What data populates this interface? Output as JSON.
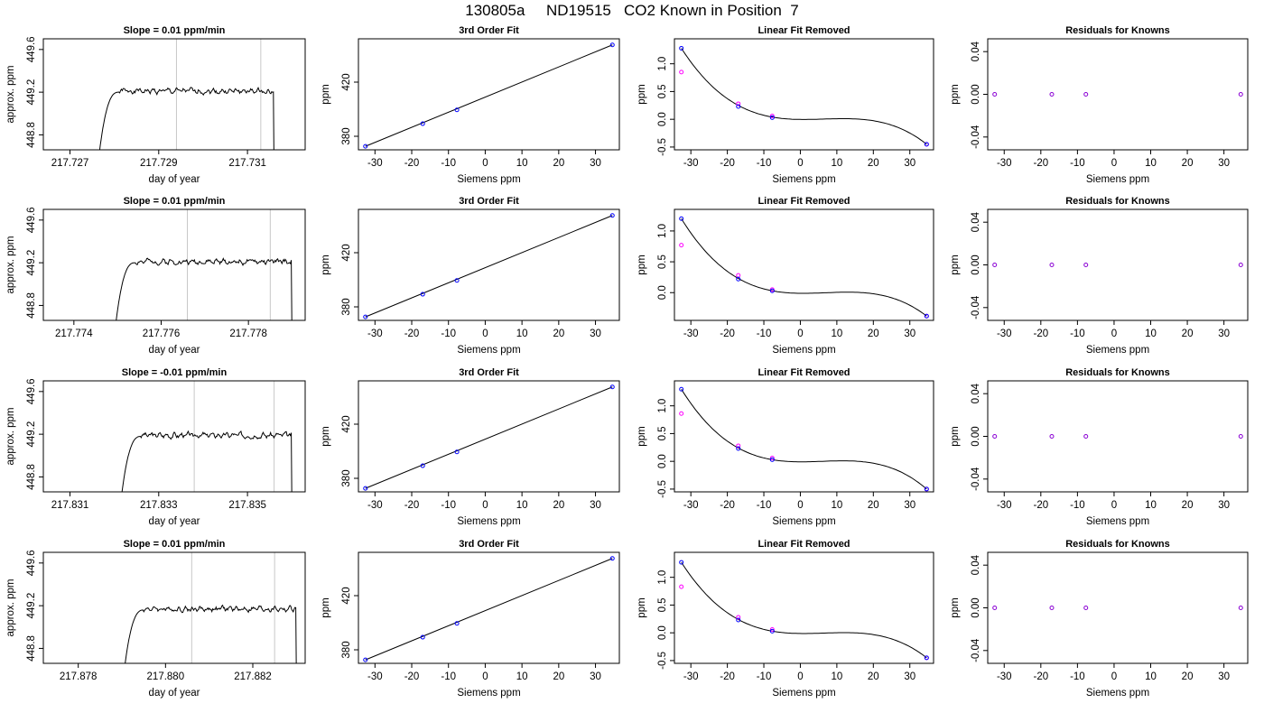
{
  "page": {
    "title": "130805a     ND19515   CO2 Known in Position  7"
  },
  "colors": {
    "siemens_points": "#0000ff",
    "fit_points": "#ff00ff",
    "residual_points": "#8a00d4",
    "window_markers": "#c8c8c8",
    "line": "#000000"
  },
  "chart_data": [
    {
      "type": "line",
      "title": "Slope =  0.01  ppm/min",
      "xlabel": "day of year",
      "ylabel": "approx. ppm",
      "xticks": [
        "217.727",
        "217.729",
        "217.731"
      ],
      "xtick_values": [
        217.727,
        217.729,
        217.731
      ],
      "yticks": [
        "448.8",
        "449.2",
        "449.6"
      ],
      "ytick_values": [
        448.8,
        449.2,
        449.6
      ],
      "xlim": [
        217.7264,
        217.7323
      ],
      "ylim": [
        448.66,
        449.7
      ],
      "markers": [
        217.7294,
        217.7313
      ],
      "trace": {
        "start": 217.7276,
        "rise_end": 217.7281,
        "end": 217.7316,
        "plateau": 449.22,
        "seed": 1
      }
    },
    {
      "type": "line",
      "title": "3rd Order Fit",
      "xlabel": "Siemens ppm",
      "ylabel": "ppm",
      "xticks": [
        "-30",
        "-20",
        "-10",
        "0",
        "10",
        "20",
        "30"
      ],
      "xtick_values": [
        -30,
        -20,
        -10,
        0,
        10,
        20,
        30
      ],
      "yticks": [
        "380",
        "420"
      ],
      "ytick_values": [
        380,
        420
      ],
      "xlim": [
        -34.5,
        36.5
      ],
      "ylim": [
        370,
        452
      ],
      "fit_line": [
        [
          -32.6,
          372.6
        ],
        [
          34.6,
          447.5
        ]
      ],
      "points": [
        [
          -32.6,
          372.6
        ],
        [
          -17,
          389.3
        ],
        [
          -7.7,
          399.5
        ],
        [
          34.6,
          447.5
        ]
      ]
    },
    {
      "type": "line",
      "title": "Linear Fit Removed",
      "xlabel": "Siemens ppm",
      "ylabel": "ppm",
      "xticks": [
        "-30",
        "-20",
        "-10",
        "0",
        "10",
        "20",
        "30"
      ],
      "xtick_values": [
        -30,
        -20,
        -10,
        0,
        10,
        20,
        30
      ],
      "yticks": [
        "-0.5",
        "0.0",
        "0.5",
        "1.0"
      ],
      "ytick_values": [
        -0.5,
        0.0,
        0.5,
        1.0
      ],
      "xlim": [
        -34.5,
        36.5
      ],
      "ylim": [
        -0.55,
        1.45
      ],
      "cubic_points": [
        [
          -32.6,
          1.28
        ],
        [
          -17,
          0.25
        ],
        [
          -7.7,
          0.04
        ],
        [
          34.6,
          -0.45
        ]
      ],
      "siemens_points": [
        [
          -32.6,
          1.28
        ],
        [
          -17,
          0.23
        ],
        [
          -7.7,
          0.03
        ],
        [
          34.6,
          -0.45
        ]
      ],
      "fit_points": [
        [
          -32.6,
          0.85
        ],
        [
          -17,
          0.28
        ],
        [
          -7.7,
          0.06
        ],
        [
          34.6,
          -0.45
        ]
      ]
    },
    {
      "type": "scatter",
      "title": "Residuals for Knowns",
      "xlabel": "Siemens ppm",
      "ylabel": "ppm",
      "xticks": [
        "-30",
        "-20",
        "-10",
        "0",
        "10",
        "20",
        "30"
      ],
      "xtick_values": [
        -30,
        -20,
        -10,
        0,
        10,
        20,
        30
      ],
      "yticks": [
        "-0.04",
        "0.00",
        "0.04"
      ],
      "ytick_values": [
        -0.04,
        0.0,
        0.04
      ],
      "xlim": [
        -34.5,
        36.5
      ],
      "ylim": [
        -0.052,
        0.052
      ],
      "points": [
        [
          -32.6,
          0.0
        ],
        [
          -17,
          0.0
        ],
        [
          -7.7,
          0.0
        ],
        [
          34.6,
          0.0
        ]
      ]
    },
    {
      "type": "line",
      "title": "Slope =  0.01  ppm/min",
      "xlabel": "day of year",
      "ylabel": "approx. ppm",
      "xticks": [
        "217.774",
        "217.776",
        "217.778"
      ],
      "xtick_values": [
        217.774,
        217.776,
        217.778
      ],
      "yticks": [
        "448.8",
        "449.2",
        "449.6"
      ],
      "ytick_values": [
        448.8,
        449.2,
        449.6
      ],
      "xlim": [
        217.7733,
        217.7793
      ],
      "ylim": [
        448.66,
        449.7
      ],
      "markers": [
        217.7766,
        217.7785
      ],
      "trace": {
        "start": 217.7749,
        "rise_end": 217.7754,
        "end": 217.779,
        "plateau": 449.22,
        "seed": 2
      }
    },
    {
      "type": "line",
      "title": "3rd Order Fit",
      "xlabel": "Siemens ppm",
      "ylabel": "ppm",
      "xticks": [
        "-30",
        "-20",
        "-10",
        "0",
        "10",
        "20",
        "30"
      ],
      "xtick_values": [
        -30,
        -20,
        -10,
        0,
        10,
        20,
        30
      ],
      "yticks": [
        "380",
        "420"
      ],
      "ytick_values": [
        380,
        420
      ],
      "xlim": [
        -34.5,
        36.5
      ],
      "ylim": [
        370,
        452
      ],
      "fit_line": [
        [
          -32.6,
          372.6
        ],
        [
          34.6,
          447.5
        ]
      ],
      "points": [
        [
          -32.6,
          372.6
        ],
        [
          -17,
          389.3
        ],
        [
          -7.7,
          399.5
        ],
        [
          34.6,
          447.5
        ]
      ]
    },
    {
      "type": "line",
      "title": "Linear Fit Removed",
      "xlabel": "Siemens ppm",
      "ylabel": "ppm",
      "xticks": [
        "-30",
        "-20",
        "-10",
        "0",
        "10",
        "20",
        "30"
      ],
      "xtick_values": [
        -30,
        -20,
        -10,
        0,
        10,
        20,
        30
      ],
      "yticks": [
        "0.0",
        "0.5",
        "1.0"
      ],
      "ytick_values": [
        0.0,
        0.5,
        1.0
      ],
      "xlim": [
        -34.5,
        36.5
      ],
      "ylim": [
        -0.45,
        1.35
      ],
      "cubic_points": [
        [
          -32.6,
          1.2
        ],
        [
          -17,
          0.23
        ],
        [
          -7.7,
          0.03
        ],
        [
          34.6,
          -0.38
        ]
      ],
      "siemens_points": [
        [
          -32.6,
          1.2
        ],
        [
          -17,
          0.22
        ],
        [
          -7.7,
          0.03
        ],
        [
          34.6,
          -0.38
        ]
      ],
      "fit_points": [
        [
          -32.6,
          0.77
        ],
        [
          -17,
          0.28
        ],
        [
          -7.7,
          0.05
        ],
        [
          34.6,
          -0.38
        ]
      ]
    },
    {
      "type": "scatter",
      "title": "Residuals for Knowns",
      "xlabel": "Siemens ppm",
      "ylabel": "ppm",
      "xticks": [
        "-30",
        "-20",
        "-10",
        "0",
        "10",
        "20",
        "30"
      ],
      "xtick_values": [
        -30,
        -20,
        -10,
        0,
        10,
        20,
        30
      ],
      "yticks": [
        "-0.04",
        "0.00",
        "0.04"
      ],
      "ytick_values": [
        -0.04,
        0.0,
        0.04
      ],
      "xlim": [
        -34.5,
        36.5
      ],
      "ylim": [
        -0.052,
        0.052
      ],
      "points": [
        [
          -32.6,
          0.0
        ],
        [
          -17,
          0.0
        ],
        [
          -7.7,
          0.0
        ],
        [
          34.6,
          0.0
        ]
      ]
    },
    {
      "type": "line",
      "title": "Slope =  -0.01  ppm/min",
      "xlabel": "day of year",
      "ylabel": "approx. ppm",
      "xticks": [
        "217.831",
        "217.833",
        "217.835"
      ],
      "xtick_values": [
        217.831,
        217.833,
        217.835
      ],
      "yticks": [
        "448.8",
        "449.2",
        "449.6"
      ],
      "ytick_values": [
        448.8,
        449.2,
        449.6
      ],
      "xlim": [
        217.8304,
        217.8363
      ],
      "ylim": [
        448.66,
        449.7
      ],
      "markers": [
        217.8338,
        217.8356
      ],
      "trace": {
        "start": 217.8321,
        "rise_end": 217.8326,
        "end": 217.836,
        "plateau": 449.2,
        "seed": 3
      }
    },
    {
      "type": "line",
      "title": "3rd Order Fit",
      "xlabel": "Siemens ppm",
      "ylabel": "ppm",
      "xticks": [
        "-30",
        "-20",
        "-10",
        "0",
        "10",
        "20",
        "30"
      ],
      "xtick_values": [
        -30,
        -20,
        -10,
        0,
        10,
        20,
        30
      ],
      "yticks": [
        "380",
        "420"
      ],
      "ytick_values": [
        380,
        420
      ],
      "xlim": [
        -34.5,
        36.5
      ],
      "ylim": [
        370,
        452
      ],
      "fit_line": [
        [
          -32.6,
          372.6
        ],
        [
          34.6,
          447.5
        ]
      ],
      "points": [
        [
          -32.6,
          372.6
        ],
        [
          -17,
          389.3
        ],
        [
          -7.7,
          399.5
        ],
        [
          34.6,
          447.5
        ]
      ]
    },
    {
      "type": "line",
      "title": "Linear Fit Removed",
      "xlabel": "Siemens ppm",
      "ylabel": "ppm",
      "xticks": [
        "-30",
        "-20",
        "-10",
        "0",
        "10",
        "20",
        "30"
      ],
      "xtick_values": [
        -30,
        -20,
        -10,
        0,
        10,
        20,
        30
      ],
      "yticks": [
        "-0.5",
        "0.0",
        "0.5",
        "1.0"
      ],
      "ytick_values": [
        -0.5,
        0.0,
        0.5,
        1.0
      ],
      "xlim": [
        -34.5,
        36.5
      ],
      "ylim": [
        -0.55,
        1.45
      ],
      "cubic_points": [
        [
          -32.6,
          1.3
        ],
        [
          -17,
          0.24
        ],
        [
          -7.7,
          0.03
        ],
        [
          34.6,
          -0.5
        ]
      ],
      "siemens_points": [
        [
          -32.6,
          1.3
        ],
        [
          -17,
          0.23
        ],
        [
          -7.7,
          0.03
        ],
        [
          34.6,
          -0.5
        ]
      ],
      "fit_points": [
        [
          -32.6,
          0.86
        ],
        [
          -17,
          0.28
        ],
        [
          -7.7,
          0.06
        ],
        [
          34.6,
          -0.5
        ]
      ]
    },
    {
      "type": "scatter",
      "title": "Residuals for Knowns",
      "xlabel": "Siemens ppm",
      "ylabel": "ppm",
      "xticks": [
        "-30",
        "-20",
        "-10",
        "0",
        "10",
        "20",
        "30"
      ],
      "xtick_values": [
        -30,
        -20,
        -10,
        0,
        10,
        20,
        30
      ],
      "yticks": [
        "-0.04",
        "0.00",
        "0.04"
      ],
      "ytick_values": [
        -0.04,
        0.0,
        0.04
      ],
      "xlim": [
        -34.5,
        36.5
      ],
      "ylim": [
        -0.052,
        0.052
      ],
      "points": [
        [
          -32.6,
          0.0
        ],
        [
          -17,
          0.0
        ],
        [
          -7.7,
          0.0
        ],
        [
          34.6,
          0.0
        ]
      ]
    },
    {
      "type": "line",
      "title": "Slope =  0.01  ppm/min",
      "xlabel": "day of year",
      "ylabel": "approx. ppm",
      "xticks": [
        "217.878",
        "217.880",
        "217.882"
      ],
      "xtick_values": [
        217.878,
        217.88,
        217.882
      ],
      "yticks": [
        "448.8",
        "449.2",
        "449.6"
      ],
      "ytick_values": [
        448.8,
        449.2,
        449.6
      ],
      "xlim": [
        217.8772,
        217.8832
      ],
      "ylim": [
        448.66,
        449.7
      ],
      "markers": [
        217.8806,
        217.8825
      ],
      "trace": {
        "start": 217.879,
        "rise_end": 217.8795,
        "end": 217.883,
        "plateau": 449.18,
        "seed": 4
      }
    },
    {
      "type": "line",
      "title": "3rd Order Fit",
      "xlabel": "Siemens ppm",
      "ylabel": "ppm",
      "xticks": [
        "-30",
        "-20",
        "-10",
        "0",
        "10",
        "20",
        "30"
      ],
      "xtick_values": [
        -30,
        -20,
        -10,
        0,
        10,
        20,
        30
      ],
      "yticks": [
        "380",
        "420"
      ],
      "ytick_values": [
        380,
        420
      ],
      "xlim": [
        -34.5,
        36.5
      ],
      "ylim": [
        370,
        452
      ],
      "fit_line": [
        [
          -32.6,
          372.6
        ],
        [
          34.6,
          447.5
        ]
      ],
      "points": [
        [
          -32.6,
          372.6
        ],
        [
          -17,
          389.3
        ],
        [
          -7.7,
          399.5
        ],
        [
          34.6,
          447.5
        ]
      ]
    },
    {
      "type": "line",
      "title": "Linear Fit Removed",
      "xlabel": "Siemens ppm",
      "ylabel": "ppm",
      "xticks": [
        "-30",
        "-20",
        "-10",
        "0",
        "10",
        "20",
        "30"
      ],
      "xtick_values": [
        -30,
        -20,
        -10,
        0,
        10,
        20,
        30
      ],
      "yticks": [
        "-0.5",
        "0.0",
        "0.5",
        "1.0"
      ],
      "ytick_values": [
        -0.5,
        0.0,
        0.5,
        1.0
      ],
      "xlim": [
        -34.5,
        36.5
      ],
      "ylim": [
        -0.55,
        1.45
      ],
      "cubic_points": [
        [
          -32.6,
          1.27
        ],
        [
          -17,
          0.24
        ],
        [
          -7.7,
          0.03
        ],
        [
          34.6,
          -0.45
        ]
      ],
      "siemens_points": [
        [
          -32.6,
          1.27
        ],
        [
          -17,
          0.23
        ],
        [
          -7.7,
          0.03
        ],
        [
          34.6,
          -0.45
        ]
      ],
      "fit_points": [
        [
          -32.6,
          0.83
        ],
        [
          -17,
          0.28
        ],
        [
          -7.7,
          0.06
        ],
        [
          34.6,
          -0.45
        ]
      ]
    },
    {
      "type": "scatter",
      "title": "Residuals for Knowns",
      "xlabel": "Siemens ppm",
      "ylabel": "ppm",
      "xticks": [
        "-30",
        "-20",
        "-10",
        "0",
        "10",
        "20",
        "30"
      ],
      "xtick_values": [
        -30,
        -20,
        -10,
        0,
        10,
        20,
        30
      ],
      "yticks": [
        "-0.04",
        "0.00",
        "0.04"
      ],
      "ytick_values": [
        -0.04,
        0.0,
        0.04
      ],
      "xlim": [
        -34.5,
        36.5
      ],
      "ylim": [
        -0.052,
        0.052
      ],
      "points": [
        [
          -32.6,
          0.0
        ],
        [
          -17,
          0.0
        ],
        [
          -7.7,
          0.0
        ],
        [
          34.6,
          0.0
        ]
      ]
    }
  ]
}
